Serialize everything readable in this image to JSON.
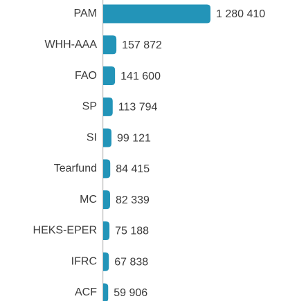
{
  "chart_data": {
    "type": "bar",
    "orientation": "horizontal",
    "categories": [
      "PAM",
      "WHH-AAA",
      "FAO",
      "SP",
      "SI",
      "Tearfund",
      "MC",
      "HEKS-EPER",
      "IFRC",
      "ACF"
    ],
    "values": [
      1280410,
      157872,
      141600,
      113794,
      99121,
      84415,
      82339,
      75188,
      67838,
      59906
    ],
    "value_labels": [
      "1 280 410",
      "157 872",
      "141 600",
      "113 794",
      "99 121",
      "84 415",
      "82 339",
      "75 188",
      "67 838",
      "59 906"
    ],
    "color": "#2394b8"
  }
}
